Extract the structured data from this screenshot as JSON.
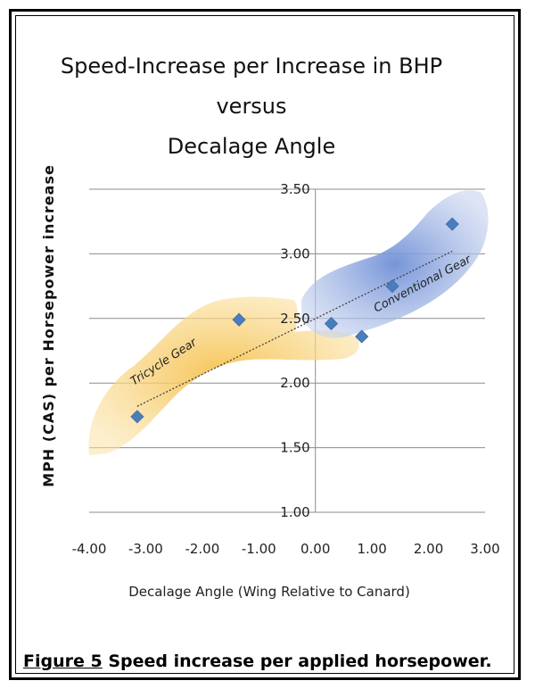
{
  "chart_data": {
    "type": "scatter",
    "title": [
      "Speed-Increase per Increase in BHP",
      "versus",
      "Decalage Angle"
    ],
    "xlabel": "Decalage Angle (Wing  Relative to Canard)",
    "ylabel": "MPH (CAS) per Horsepower increase",
    "xlim": [
      -4.0,
      3.0
    ],
    "ylim": [
      1.0,
      3.5
    ],
    "x_ticks": [
      "-4.00",
      "-3.00",
      "-2.00",
      "-1.00",
      "0.00",
      "1.00",
      "2.00",
      "3.00"
    ],
    "y_ticks": [
      "1.00",
      "1.50",
      "2.00",
      "2.50",
      "3.00",
      "3.50"
    ],
    "grid": true,
    "series": [
      {
        "marker": "diamond",
        "color": "#4a7ebb",
        "points": [
          {
            "x": -3.15,
            "y": 1.74
          },
          {
            "x": -1.35,
            "y": 2.49
          },
          {
            "x": 0.28,
            "y": 2.46
          },
          {
            "x": 0.82,
            "y": 2.36
          },
          {
            "x": 1.36,
            "y": 2.75
          },
          {
            "x": 2.42,
            "y": 3.23
          }
        ]
      }
    ],
    "trendline": {
      "style": "dotted",
      "color": "#444444",
      "from": {
        "x": -3.15,
        "y": 1.82
      },
      "to": {
        "x": 2.42,
        "y": 3.02
      }
    },
    "regions": [
      {
        "label": "Tricycle Gear",
        "color": "#f5c04a"
      },
      {
        "label": "Conventional Gear",
        "color": "#5b7fd0"
      }
    ]
  },
  "caption": {
    "figure": "Figure 5",
    "text": " Speed increase per applied horsepower."
  }
}
